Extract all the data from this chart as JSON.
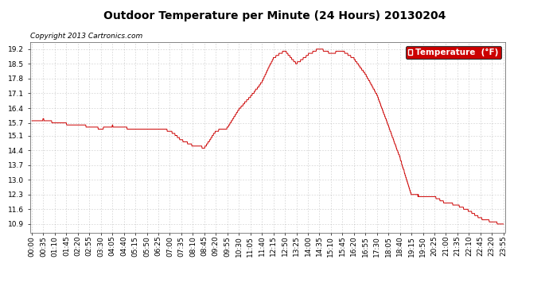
{
  "title": "Outdoor Temperature per Minute (24 Hours) 20130204",
  "copyright_text": "Copyright 2013 Cartronics.com",
  "legend_label": "Temperature  (°F)",
  "line_color": "#cc0000",
  "background_color": "#ffffff",
  "grid_color": "#999999",
  "yticks": [
    10.9,
    11.6,
    12.3,
    13.0,
    13.7,
    14.4,
    15.1,
    15.7,
    16.4,
    17.1,
    17.8,
    18.5,
    19.2
  ],
  "ylim": [
    10.5,
    19.55
  ],
  "time_labels": [
    "00:00",
    "00:35",
    "01:10",
    "01:45",
    "02:20",
    "02:55",
    "03:30",
    "04:05",
    "04:40",
    "05:15",
    "05:50",
    "06:25",
    "07:00",
    "07:35",
    "08:10",
    "08:45",
    "09:20",
    "09:55",
    "10:30",
    "11:05",
    "11:40",
    "12:15",
    "12:50",
    "13:25",
    "14:00",
    "14:35",
    "15:10",
    "15:45",
    "16:20",
    "16:55",
    "17:30",
    "18:05",
    "18:40",
    "19:15",
    "19:50",
    "20:25",
    "21:00",
    "21:35",
    "22:10",
    "22:45",
    "23:20",
    "23:55"
  ],
  "key_times": [
    0,
    35,
    70,
    105,
    140,
    175,
    210,
    245,
    280,
    315,
    350,
    385,
    420,
    455,
    490,
    525,
    560,
    595,
    630,
    665,
    700,
    735,
    770,
    805,
    840,
    875,
    910,
    945,
    980,
    1015,
    1050,
    1085,
    1120,
    1155,
    1190,
    1225,
    1260,
    1295,
    1330,
    1365,
    1400,
    1435
  ],
  "key_temps": [
    15.8,
    15.85,
    15.7,
    15.65,
    15.6,
    15.5,
    15.4,
    15.55,
    15.45,
    15.4,
    15.35,
    15.4,
    15.3,
    14.85,
    14.6,
    14.5,
    15.3,
    15.45,
    16.3,
    16.9,
    17.6,
    18.75,
    19.1,
    18.5,
    18.95,
    19.25,
    19.05,
    19.15,
    18.8,
    18.05,
    17.1,
    15.6,
    14.1,
    12.3,
    12.25,
    12.2,
    11.9,
    11.8,
    11.55,
    11.2,
    11.05,
    10.9
  ],
  "title_fontsize": 10,
  "copyright_fontsize": 6.5,
  "tick_fontsize": 6.5,
  "legend_fontsize": 7.5
}
